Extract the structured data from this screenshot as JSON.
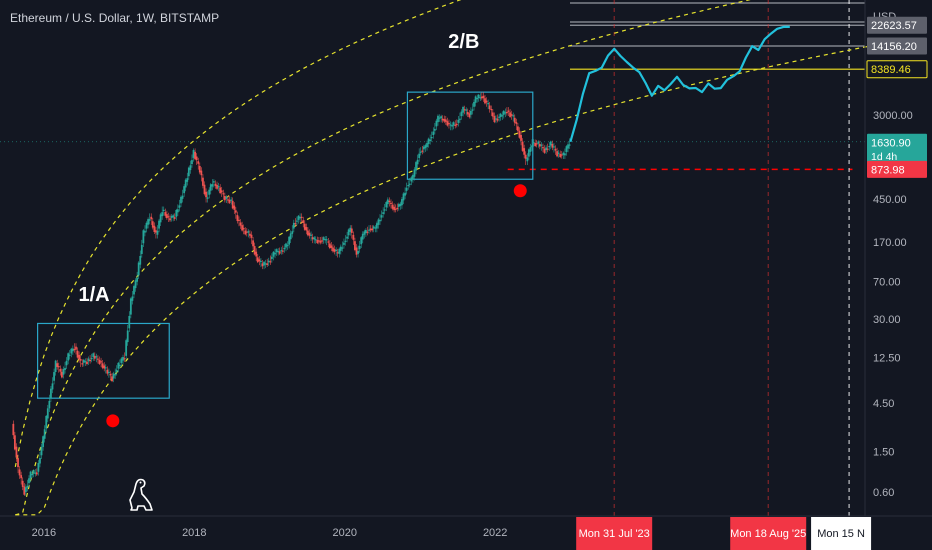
{
  "header": {
    "symbol_title": "Ethereum / U.S. Dollar, 1W, BITSTAMP"
  },
  "colors": {
    "background": "#131722",
    "up_candle": "#26a69a",
    "down_candle": "#ef5350",
    "projection": "#22c1dc",
    "channel": "#e6e32e",
    "box": "#2aa7c9",
    "marker": "#ff0000",
    "target_line_gray": "#9598a1",
    "target_line_yellow": "#f4e422"
  },
  "chart_data": {
    "type": "line",
    "title": "Ethereum / U.S. Dollar, 1W, BITSTAMP",
    "yscale": "log",
    "ylabel": "USD",
    "ylim": [
      0.35,
      40000
    ],
    "xlim": [
      "2015-06",
      "2026-12"
    ],
    "x_ticks": [
      "2016",
      "2018",
      "2020",
      "2022"
    ],
    "y_ticks": [
      0.6,
      1.5,
      4.5,
      12.5,
      30,
      70,
      170,
      450,
      3000
    ],
    "y_tick_labels": [
      "0.60",
      "1.50",
      "4.50",
      "12.50",
      "30.00",
      "70.00",
      "170.00",
      "450.00",
      "3000.00"
    ],
    "price_labels": [
      {
        "value": 22623.57,
        "label": "22623.57",
        "style": "gray"
      },
      {
        "value": 14156.2,
        "label": "14156.20",
        "style": "gray"
      },
      {
        "value": 8389.46,
        "label": "8389.46",
        "style": "yellow"
      },
      {
        "value": 1630.9,
        "label": "1630.90",
        "sublabel": "1d 4h",
        "style": "current"
      },
      {
        "value": 873.98,
        "label": "873.98",
        "style": "red"
      }
    ],
    "date_labels": [
      {
        "date": "2023-07-31",
        "label": "Mon 31 Jul '23",
        "style": "red"
      },
      {
        "date": "2025-08-18",
        "label": "Mon 18 Aug '25",
        "style": "red"
      },
      {
        "date": "2026-09-15",
        "label": "Mon 15 N",
        "style": "white"
      }
    ],
    "annotations": [
      {
        "text": "1/A",
        "x": "2016-09",
        "y": 45
      },
      {
        "text": "2/B",
        "x": "2021-08",
        "y": 13500
      }
    ],
    "boxes": [
      {
        "x0": "2015-12",
        "x1": "2017-09",
        "y0": 5,
        "y1": 27
      },
      {
        "x0": "2020-11",
        "x1": "2022-07",
        "y0": 700,
        "y1": 5000
      }
    ],
    "markers": [
      {
        "x": "2016-12",
        "y": 3
      },
      {
        "x": "2022-05",
        "y": 540
      }
    ],
    "horizontal_levels": [
      {
        "y": 873.98,
        "from": "2022-03",
        "to": "2026-10",
        "style": "red-dashed"
      },
      {
        "y": 1630.9,
        "style": "current-dotted"
      }
    ],
    "price_history": [
      {
        "x": "2015-08",
        "y": 2.8
      },
      {
        "x": "2015-09",
        "y": 1.0
      },
      {
        "x": "2015-10",
        "y": 0.6
      },
      {
        "x": "2015-11",
        "y": 0.9
      },
      {
        "x": "2015-12",
        "y": 0.95
      },
      {
        "x": "2016-01",
        "y": 2.0
      },
      {
        "x": "2016-02",
        "y": 5.0
      },
      {
        "x": "2016-03",
        "y": 11.0
      },
      {
        "x": "2016-04",
        "y": 8.5
      },
      {
        "x": "2016-05",
        "y": 13.0
      },
      {
        "x": "2016-06",
        "y": 16.0
      },
      {
        "x": "2016-07",
        "y": 11.0
      },
      {
        "x": "2016-08",
        "y": 11.5
      },
      {
        "x": "2016-09",
        "y": 13.0
      },
      {
        "x": "2016-10",
        "y": 11.5
      },
      {
        "x": "2016-11",
        "y": 9.5
      },
      {
        "x": "2016-12",
        "y": 7.8
      },
      {
        "x": "2017-01",
        "y": 10.5
      },
      {
        "x": "2017-02",
        "y": 13.0
      },
      {
        "x": "2017-03",
        "y": 45.0
      },
      {
        "x": "2017-04",
        "y": 80.0
      },
      {
        "x": "2017-05",
        "y": 210.0
      },
      {
        "x": "2017-06",
        "y": 300.0
      },
      {
        "x": "2017-07",
        "y": 200.0
      },
      {
        "x": "2017-08",
        "y": 350.0
      },
      {
        "x": "2017-09",
        "y": 290.0
      },
      {
        "x": "2017-10",
        "y": 300.0
      },
      {
        "x": "2017-11",
        "y": 450.0
      },
      {
        "x": "2017-12",
        "y": 750.0
      },
      {
        "x": "2018-01",
        "y": 1300.0
      },
      {
        "x": "2018-02",
        "y": 850.0
      },
      {
        "x": "2018-03",
        "y": 450.0
      },
      {
        "x": "2018-04",
        "y": 650.0
      },
      {
        "x": "2018-05",
        "y": 580.0
      },
      {
        "x": "2018-06",
        "y": 450.0
      },
      {
        "x": "2018-07",
        "y": 430.0
      },
      {
        "x": "2018-08",
        "y": 280.0
      },
      {
        "x": "2018-09",
        "y": 220.0
      },
      {
        "x": "2018-10",
        "y": 200.0
      },
      {
        "x": "2018-11",
        "y": 120.0
      },
      {
        "x": "2018-12",
        "y": 100.0
      },
      {
        "x": "2019-01",
        "y": 110.0
      },
      {
        "x": "2019-02",
        "y": 135.0
      },
      {
        "x": "2019-03",
        "y": 140.0
      },
      {
        "x": "2019-04",
        "y": 160.0
      },
      {
        "x": "2019-05",
        "y": 260.0
      },
      {
        "x": "2019-06",
        "y": 300.0
      },
      {
        "x": "2019-07",
        "y": 220.0
      },
      {
        "x": "2019-08",
        "y": 180.0
      },
      {
        "x": "2019-09",
        "y": 175.0
      },
      {
        "x": "2019-10",
        "y": 180.0
      },
      {
        "x": "2019-11",
        "y": 150.0
      },
      {
        "x": "2019-12",
        "y": 130.0
      },
      {
        "x": "2020-01",
        "y": 170.0
      },
      {
        "x": "2020-02",
        "y": 230.0
      },
      {
        "x": "2020-03",
        "y": 130.0
      },
      {
        "x": "2020-04",
        "y": 200.0
      },
      {
        "x": "2020-05",
        "y": 230.0
      },
      {
        "x": "2020-06",
        "y": 230.0
      },
      {
        "x": "2020-07",
        "y": 320.0
      },
      {
        "x": "2020-08",
        "y": 430.0
      },
      {
        "x": "2020-09",
        "y": 360.0
      },
      {
        "x": "2020-10",
        "y": 390.0
      },
      {
        "x": "2020-11",
        "y": 600.0
      },
      {
        "x": "2020-12",
        "y": 740.0
      },
      {
        "x": "2021-01",
        "y": 1300.0
      },
      {
        "x": "2021-02",
        "y": 1450.0
      },
      {
        "x": "2021-03",
        "y": 1900.0
      },
      {
        "x": "2021-04",
        "y": 2800.0
      },
      {
        "x": "2021-05",
        "y": 2700.0
      },
      {
        "x": "2021-06",
        "y": 2300.0
      },
      {
        "x": "2021-07",
        "y": 2500.0
      },
      {
        "x": "2021-08",
        "y": 3400.0
      },
      {
        "x": "2021-09",
        "y": 3000.0
      },
      {
        "x": "2021-10",
        "y": 4300.0
      },
      {
        "x": "2021-11",
        "y": 4600.0
      },
      {
        "x": "2021-12",
        "y": 3700.0
      },
      {
        "x": "2022-01",
        "y": 2700.0
      },
      {
        "x": "2022-02",
        "y": 2900.0
      },
      {
        "x": "2022-03",
        "y": 3300.0
      },
      {
        "x": "2022-04",
        "y": 2800.0
      },
      {
        "x": "2022-05",
        "y": 1900.0
      },
      {
        "x": "2022-06",
        "y": 1050.0
      },
      {
        "x": "2022-07",
        "y": 1600.0
      },
      {
        "x": "2022-08",
        "y": 1550.0
      },
      {
        "x": "2022-09",
        "y": 1350.0
      },
      {
        "x": "2022-10",
        "y": 1550.0
      },
      {
        "x": "2022-11",
        "y": 1250.0
      },
      {
        "x": "2022-12",
        "y": 1200.0
      },
      {
        "x": "2023-01",
        "y": 1630.9
      }
    ],
    "series": [
      {
        "values": [
          {
            "x": "2023-01",
            "y": 1630.9
          },
          {
            "x": "2023-02",
            "y": 2600
          },
          {
            "x": "2023-03",
            "y": 5000
          },
          {
            "x": "2023-04",
            "y": 7500
          },
          {
            "x": "2023-05",
            "y": 8000
          },
          {
            "x": "2023-06",
            "y": 9000
          },
          {
            "x": "2023-07",
            "y": 11000
          },
          {
            "x": "2023-08",
            "y": 13500
          },
          {
            "x": "2023-09",
            "y": 11500
          },
          {
            "x": "2023-10",
            "y": 9500
          },
          {
            "x": "2023-11",
            "y": 9000
          },
          {
            "x": "2023-12",
            "y": 7800
          },
          {
            "x": "2024-01",
            "y": 6000
          },
          {
            "x": "2024-02",
            "y": 4800
          },
          {
            "x": "2024-03",
            "y": 5600
          },
          {
            "x": "2024-04",
            "y": 5200
          },
          {
            "x": "2024-05",
            "y": 6200
          },
          {
            "x": "2024-06",
            "y": 6800
          },
          {
            "x": "2024-07",
            "y": 6000
          },
          {
            "x": "2024-08",
            "y": 5500
          },
          {
            "x": "2024-09",
            "y": 5300
          },
          {
            "x": "2024-10",
            "y": 5200
          },
          {
            "x": "2024-11",
            "y": 6000
          },
          {
            "x": "2024-12",
            "y": 5300
          },
          {
            "x": "2025-01",
            "y": 5700
          },
          {
            "x": "2025-02",
            "y": 6400
          },
          {
            "x": "2025-03",
            "y": 7200
          },
          {
            "x": "2025-04",
            "y": 8200
          },
          {
            "x": "2025-05",
            "y": 10500
          },
          {
            "x": "2025-06",
            "y": 14500
          },
          {
            "x": "2025-07",
            "y": 13000
          },
          {
            "x": "2025-08",
            "y": 16000
          },
          {
            "x": "2025-09",
            "y": 19500
          },
          {
            "x": "2025-10",
            "y": 20500
          },
          {
            "x": "2025-11",
            "y": 21500
          },
          {
            "x": "2025-12",
            "y": 22623.57
          }
        ]
      }
    ]
  }
}
